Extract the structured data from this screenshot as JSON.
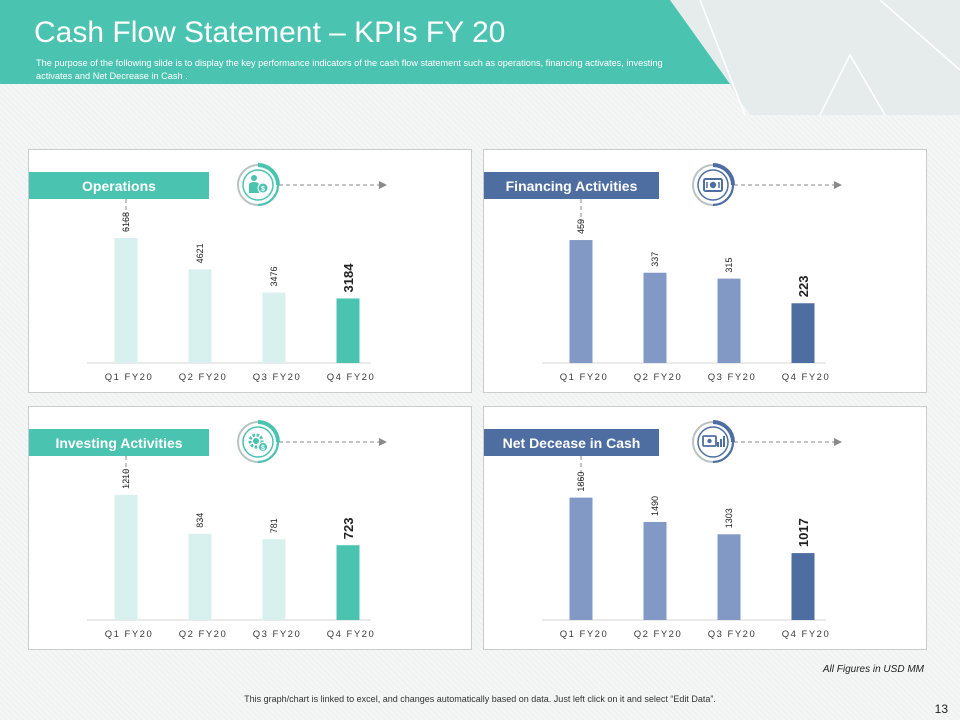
{
  "header": {
    "title": "Cash Flow Statement – KPIs FY 20",
    "subtitle": "The purpose of the following slide is to display the key performance indicators of the cash flow statement such as operations, financing activates, investing activates and Net Decrease in Cash ."
  },
  "colors": {
    "teal": "#4bc3b1",
    "teal_light": "#d9f1ee",
    "blue": "#4e6ea2",
    "blue_light": "#8199c4",
    "dark_text": "#222222"
  },
  "chart_data": [
    {
      "type": "bar",
      "title": "Operations",
      "icon": "person-dollar-icon",
      "theme": "teal",
      "categories": [
        "Q1 FY20",
        "Q2 FY20",
        "Q3 FY20",
        "Q4 FY20"
      ],
      "values": [
        6168,
        4621,
        3476,
        3184
      ],
      "ylim": [
        0,
        7400
      ]
    },
    {
      "type": "bar",
      "title": "Financing Activities",
      "icon": "banknote-icon",
      "theme": "blue",
      "categories": [
        "Q1 FY20",
        "Q2 FY20",
        "Q3 FY20",
        "Q4 FY20"
      ],
      "values": [
        459,
        337,
        315,
        223
      ],
      "ylim": [
        0,
        560
      ]
    },
    {
      "type": "bar",
      "title": "Investing Activities",
      "icon": "gear-dollar-icon",
      "theme": "teal",
      "categories": [
        "Q1 FY20",
        "Q2 FY20",
        "Q3 FY20",
        "Q4 FY20"
      ],
      "values": [
        1210,
        834,
        781,
        723
      ],
      "ylim": [
        0,
        1450
      ]
    },
    {
      "type": "bar",
      "title": "Net Decease in Cash",
      "icon": "cash-chart-icon",
      "theme": "blue",
      "categories": [
        "Q1 FY20",
        "Q2 FY20",
        "Q3 FY20",
        "Q4 FY20"
      ],
      "values": [
        1860,
        1490,
        1303,
        1017
      ],
      "ylim": [
        0,
        2280
      ]
    }
  ],
  "notes": {
    "figures": "All Figures in USD MM",
    "footnote": "This graph/chart is linked to excel, and changes automatically based on data. Just left click on it and select “Edit Data”.",
    "page_number": "13"
  }
}
